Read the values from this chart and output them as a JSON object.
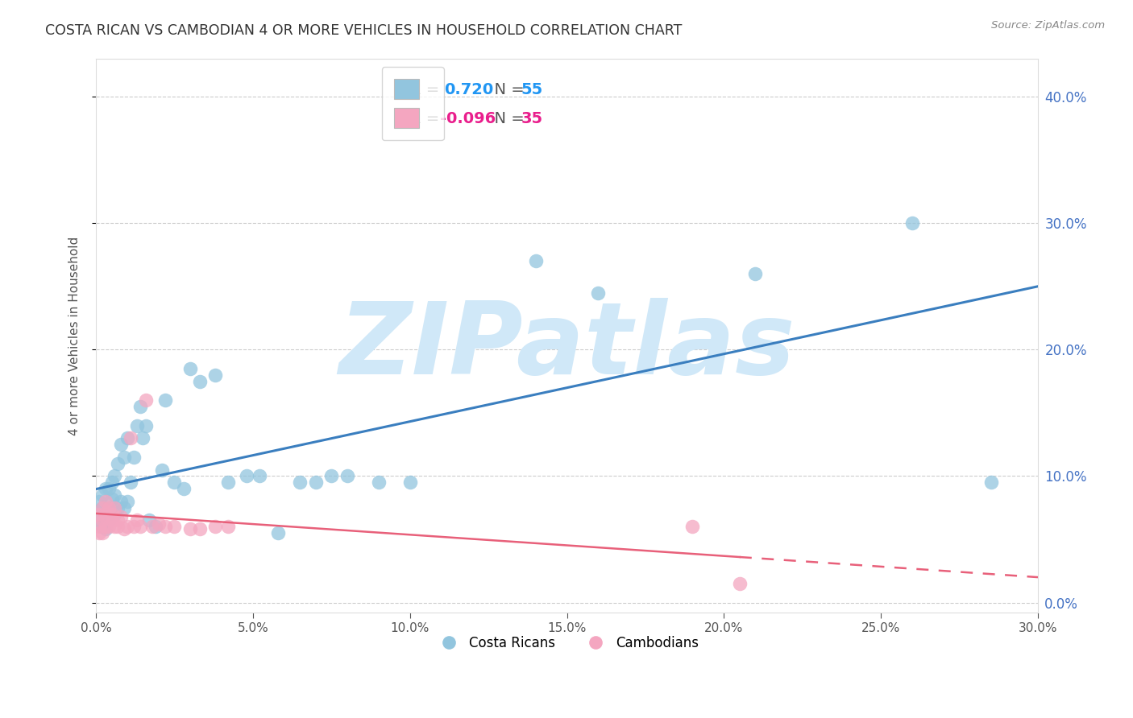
{
  "title": "COSTA RICAN VS CAMBODIAN 4 OR MORE VEHICLES IN HOUSEHOLD CORRELATION CHART",
  "source": "Source: ZipAtlas.com",
  "ylabel": "4 or more Vehicles in Household",
  "xlim": [
    0.0,
    0.3
  ],
  "ylim": [
    -0.008,
    0.43
  ],
  "x_ticks": [
    0.0,
    0.05,
    0.1,
    0.15,
    0.2,
    0.25,
    0.3
  ],
  "y_ticks": [
    0.0,
    0.1,
    0.2,
    0.3,
    0.4
  ],
  "blue_r": "0.720",
  "blue_n": "55",
  "pink_r": "-0.096",
  "pink_n": "35",
  "blue_color": "#92c5de",
  "pink_color": "#f4a6c0",
  "blue_line_color": "#3a7ebf",
  "pink_line_color": "#e8607a",
  "watermark_color": "#d0e8f8",
  "legend_labels": [
    "Costa Ricans",
    "Cambodians"
  ],
  "costa_rican_x": [
    0.001,
    0.001,
    0.002,
    0.002,
    0.002,
    0.003,
    0.003,
    0.003,
    0.004,
    0.004,
    0.004,
    0.005,
    0.005,
    0.005,
    0.006,
    0.006,
    0.006,
    0.007,
    0.007,
    0.008,
    0.008,
    0.009,
    0.009,
    0.01,
    0.01,
    0.011,
    0.012,
    0.013,
    0.014,
    0.015,
    0.016,
    0.017,
    0.019,
    0.021,
    0.022,
    0.025,
    0.028,
    0.03,
    0.033,
    0.038,
    0.042,
    0.048,
    0.052,
    0.058,
    0.065,
    0.07,
    0.075,
    0.08,
    0.09,
    0.1,
    0.14,
    0.16,
    0.21,
    0.26,
    0.285
  ],
  "costa_rican_y": [
    0.065,
    0.08,
    0.06,
    0.075,
    0.085,
    0.058,
    0.07,
    0.09,
    0.065,
    0.075,
    0.09,
    0.072,
    0.082,
    0.095,
    0.07,
    0.085,
    0.1,
    0.075,
    0.11,
    0.08,
    0.125,
    0.075,
    0.115,
    0.08,
    0.13,
    0.095,
    0.115,
    0.14,
    0.155,
    0.13,
    0.14,
    0.065,
    0.06,
    0.105,
    0.16,
    0.095,
    0.09,
    0.185,
    0.175,
    0.18,
    0.095,
    0.1,
    0.1,
    0.055,
    0.095,
    0.095,
    0.1,
    0.1,
    0.095,
    0.095,
    0.27,
    0.245,
    0.26,
    0.3,
    0.095
  ],
  "cambodian_x": [
    0.001,
    0.001,
    0.001,
    0.002,
    0.002,
    0.002,
    0.003,
    0.003,
    0.003,
    0.004,
    0.004,
    0.005,
    0.005,
    0.006,
    0.006,
    0.007,
    0.007,
    0.008,
    0.009,
    0.01,
    0.011,
    0.012,
    0.013,
    0.014,
    0.016,
    0.018,
    0.02,
    0.022,
    0.025,
    0.03,
    0.033,
    0.038,
    0.042,
    0.19,
    0.205
  ],
  "cambodian_y": [
    0.06,
    0.055,
    0.07,
    0.065,
    0.075,
    0.055,
    0.06,
    0.07,
    0.08,
    0.06,
    0.075,
    0.065,
    0.07,
    0.06,
    0.075,
    0.065,
    0.06,
    0.068,
    0.058,
    0.06,
    0.13,
    0.06,
    0.065,
    0.06,
    0.16,
    0.06,
    0.062,
    0.06,
    0.06,
    0.058,
    0.058,
    0.06,
    0.06,
    0.06,
    0.015
  ]
}
